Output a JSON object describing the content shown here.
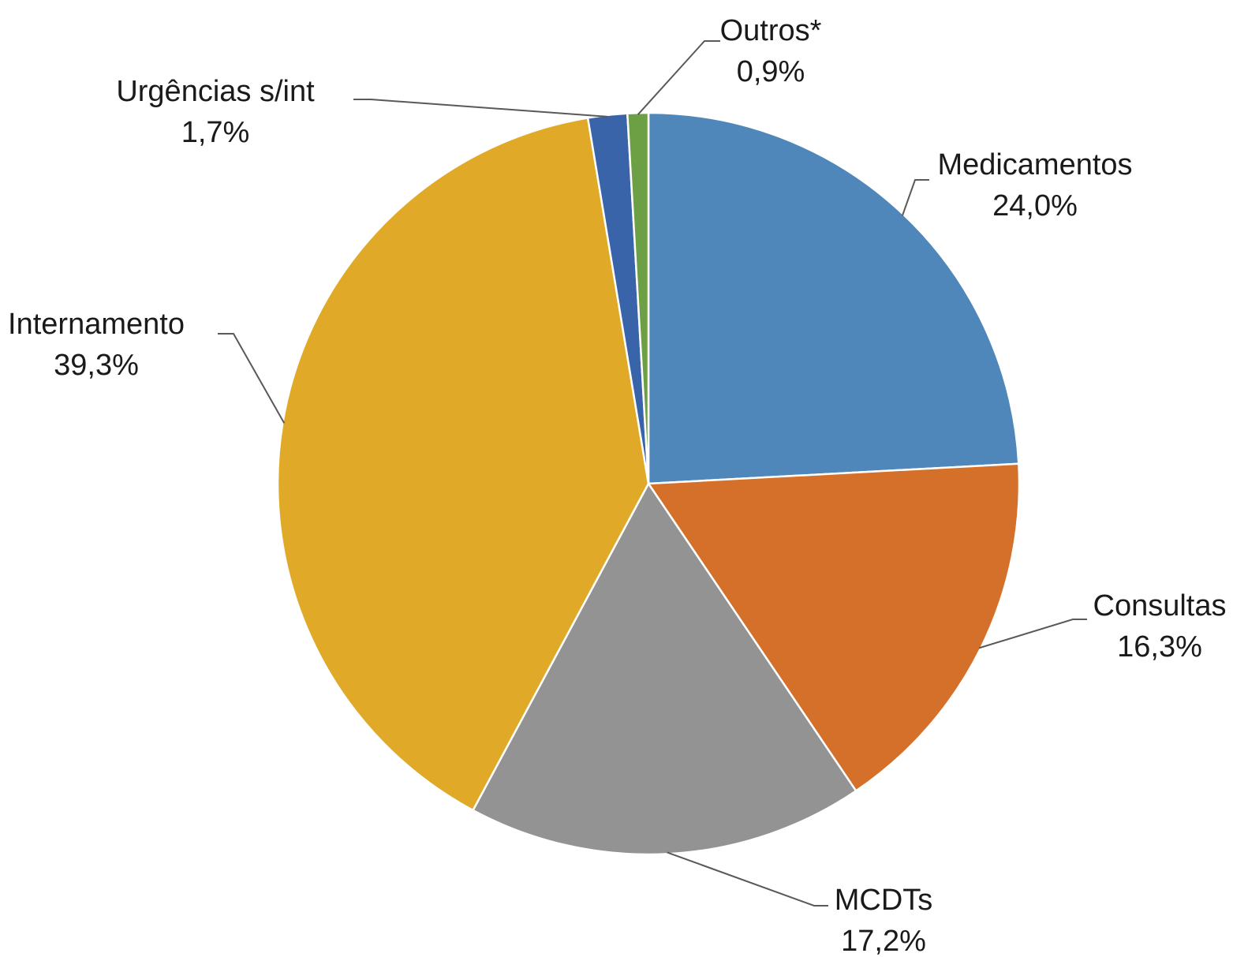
{
  "chart_data": {
    "type": "pie",
    "title": "",
    "start_angle_deg": 0,
    "direction": "clockwise",
    "legend": "none",
    "slices": [
      {
        "name": "Medicamentos",
        "value": 24.0,
        "label": "24,0%",
        "color": "#4F87BA"
      },
      {
        "name": "Consultas",
        "value": 16.3,
        "label": "16,3%",
        "color": "#D4702A"
      },
      {
        "name": "MCDTs",
        "value": 17.2,
        "label": "17,2%",
        "color": "#939393"
      },
      {
        "name": "Internamento",
        "value": 39.3,
        "label": "39,3%",
        "color": "#E0AA28"
      },
      {
        "name": "Urgências s/int",
        "value": 1.7,
        "label": "1,7%",
        "color": "#3A64AA"
      },
      {
        "name": "Outros*",
        "value": 0.9,
        "label": "0,9%",
        "color": "#6DA044"
      }
    ]
  }
}
